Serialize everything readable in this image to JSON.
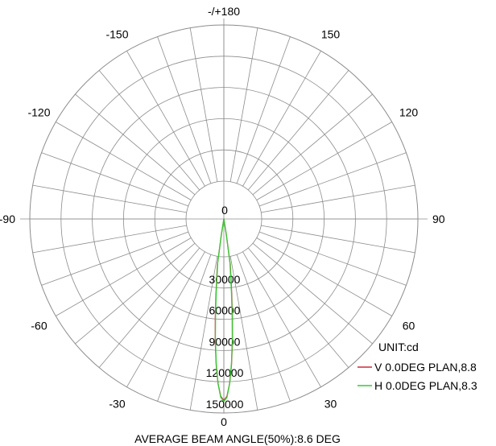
{
  "chart_data": {
    "type": "polar-line",
    "unit_label": "UNIT:cd",
    "footer": "AVERAGE BEAM ANGLE(50%):8.6 DEG",
    "angle_labels": [
      {
        "angle": 180,
        "text": "-/+180"
      },
      {
        "angle": 150,
        "text": "150"
      },
      {
        "angle": 120,
        "text": "120"
      },
      {
        "angle": 90,
        "text": "90"
      },
      {
        "angle": 60,
        "text": "60"
      },
      {
        "angle": 30,
        "text": "30"
      },
      {
        "angle": 0,
        "text": "0"
      },
      {
        "angle": -30,
        "text": "-30"
      },
      {
        "angle": -60,
        "text": "-60"
      },
      {
        "angle": -90,
        "text": "-90"
      },
      {
        "angle": -120,
        "text": "-120"
      },
      {
        "angle": -150,
        "text": "-150"
      }
    ],
    "radial_ticks": [
      0,
      30000,
      60000,
      90000,
      120000,
      150000
    ],
    "radial_max": 150000,
    "angular_grid_step_deg": 10,
    "series": [
      {
        "name": "V 0.0DEG PLAN,8.8",
        "color": "#cc2b3a",
        "angles": [
          -9,
          -8,
          -7,
          -6,
          -5,
          -4,
          -3,
          -2,
          -1,
          0,
          1,
          2,
          3,
          4,
          5,
          6,
          7,
          8,
          9
        ],
        "values": [
          2000,
          8000,
          19000,
          36000,
          58000,
          82000,
          104000,
          122000,
          134000,
          138000,
          134000,
          122000,
          104000,
          82000,
          58000,
          36000,
          19000,
          8000,
          2000
        ]
      },
      {
        "name": "H 0.0DEG PLAN,8.3",
        "color": "#33cc33",
        "angles": [
          -9,
          -8,
          -7,
          -6,
          -5,
          -4,
          -3,
          -2,
          -1,
          0,
          1,
          2,
          3,
          4,
          5,
          6,
          7,
          8,
          9
        ],
        "values": [
          1500,
          6000,
          16000,
          33000,
          55000,
          80000,
          103000,
          122000,
          135000,
          139000,
          135000,
          122000,
          103000,
          80000,
          55000,
          33000,
          16000,
          6000,
          1500
        ]
      }
    ]
  }
}
